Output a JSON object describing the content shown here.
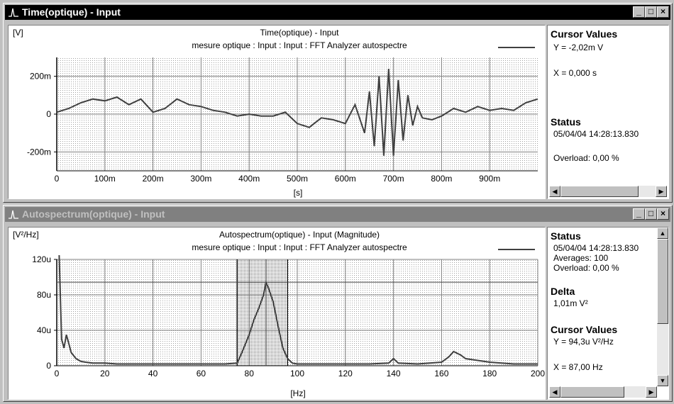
{
  "windows": [
    {
      "title": "Time(optique) - Input",
      "plot": {
        "unit_label": "[V]",
        "title": "Time(optique) - Input",
        "subtitle": "mesure optique : Input : Input : FFT Analyzer autospectre",
        "xlabel": "[s]"
      },
      "side": {
        "cursor_heading": "Cursor Values",
        "cursor_y": "Y = -2,02m V",
        "cursor_x": "X = 0,000 s",
        "status_heading": "Status",
        "status_datetime": "05/04/04  14:28:13.830",
        "overload": "Overload:  0,00 %"
      }
    },
    {
      "title": "Autospectrum(optique) - Input",
      "plot": {
        "unit_label": "[V²/Hz]",
        "title": "Autospectrum(optique) - Input (Magnitude)",
        "subtitle": "mesure optique : Input : Input : FFT Analyzer autospectre",
        "xlabel": "[Hz]"
      },
      "side": {
        "status_heading": "Status",
        "status_datetime": "05/04/04  14:28:13.830",
        "averages": "Averages: 100",
        "overload": "Overload:  0,00 %",
        "delta_heading": "Delta",
        "delta_value": "1,01m V²",
        "cursor_heading": "Cursor Values",
        "cursor_y": "Y = 94,3u V²/Hz",
        "cursor_x": "X = 87,00 Hz"
      }
    }
  ],
  "icons": {
    "window": "spectrum-icon",
    "minimize": "minimize-icon",
    "maximize": "maximize-icon",
    "close": "close-icon"
  },
  "colors": {
    "trace": "#404040",
    "titlebar_active": "#000000",
    "titlebar_inactive": "#808080"
  },
  "chart_data": [
    {
      "type": "line",
      "title": "Time(optique) - Input",
      "subtitle": "mesure optique : Input : Input : FFT Analyzer autospectre",
      "xlabel": "[s]",
      "ylabel": "[V]",
      "xlim": [
        0,
        1.0
      ],
      "ylim": [
        -0.3,
        0.3
      ],
      "x_tick_values": [
        0,
        0.1,
        0.2,
        0.3,
        0.4,
        0.5,
        0.6,
        0.7,
        0.8,
        0.9
      ],
      "x_tick_labels": [
        "0",
        "100m",
        "200m",
        "300m",
        "400m",
        "500m",
        "600m",
        "700m",
        "800m",
        "900m"
      ],
      "y_tick_values": [
        0.2,
        0,
        -0.2
      ],
      "y_tick_labels": [
        "200m",
        "0",
        "-200m"
      ],
      "grid": true,
      "series": [
        {
          "x": [
            0,
            0.025,
            0.05,
            0.075,
            0.1,
            0.125,
            0.15,
            0.175,
            0.2,
            0.225,
            0.25,
            0.275,
            0.3,
            0.325,
            0.35,
            0.375,
            0.4,
            0.425,
            0.45,
            0.475,
            0.5,
            0.525,
            0.55,
            0.575,
            0.6,
            0.62,
            0.64,
            0.65,
            0.66,
            0.67,
            0.68,
            0.69,
            0.7,
            0.71,
            0.72,
            0.73,
            0.74,
            0.75,
            0.76,
            0.78,
            0.8,
            0.825,
            0.85,
            0.875,
            0.9,
            0.925,
            0.95,
            0.975,
            1.0
          ],
          "y": [
            0.01,
            0.03,
            0.06,
            0.08,
            0.07,
            0.09,
            0.05,
            0.08,
            0.01,
            0.03,
            0.08,
            0.05,
            0.04,
            0.02,
            0.01,
            -0.01,
            0.0,
            -0.01,
            -0.01,
            0.01,
            -0.05,
            -0.07,
            -0.02,
            -0.03,
            -0.05,
            0.05,
            -0.1,
            0.12,
            -0.17,
            0.2,
            -0.22,
            0.24,
            -0.22,
            0.18,
            -0.14,
            0.1,
            -0.06,
            0.04,
            -0.02,
            -0.03,
            -0.01,
            0.03,
            0.01,
            0.04,
            0.02,
            0.03,
            0.02,
            0.06,
            0.08
          ]
        }
      ]
    },
    {
      "type": "line",
      "title": "Autospectrum(optique) - Input (Magnitude)",
      "subtitle": "mesure optique : Input : Input : FFT Analyzer autospectre",
      "xlabel": "[Hz]",
      "ylabel": "[V²/Hz]",
      "xlim": [
        0,
        200
      ],
      "ylim": [
        0,
        120
      ],
      "x_tick_values": [
        0,
        20,
        40,
        60,
        80,
        100,
        120,
        140,
        160,
        180,
        200
      ],
      "x_tick_labels": [
        "0",
        "20",
        "40",
        "60",
        "80",
        "100",
        "120",
        "140",
        "160",
        "180",
        "200"
      ],
      "y_tick_values": [
        120,
        80,
        40,
        0
      ],
      "y_tick_labels": [
        "120u",
        "80u",
        "40u",
        "0"
      ],
      "grid": true,
      "delta_band": [
        75,
        96
      ],
      "cursor_x": 87,
      "cursor_y": 94.3,
      "series": [
        {
          "x": [
            1,
            2,
            3,
            4,
            5,
            6,
            8,
            10,
            12,
            15,
            20,
            25,
            30,
            40,
            50,
            60,
            70,
            75,
            77,
            80,
            82,
            84,
            86,
            87,
            88,
            90,
            92,
            94,
            96,
            98,
            100,
            110,
            120,
            130,
            138,
            140,
            142,
            150,
            160,
            163,
            165,
            168,
            170,
            180,
            190,
            200
          ],
          "y": [
            125,
            30,
            20,
            35,
            25,
            15,
            8,
            5,
            4,
            3,
            3,
            2,
            2,
            2,
            2,
            2,
            2,
            3,
            15,
            35,
            52,
            65,
            80,
            94,
            88,
            72,
            45,
            20,
            8,
            3,
            2,
            2,
            2,
            2,
            3,
            8,
            3,
            2,
            4,
            10,
            16,
            12,
            8,
            4,
            2,
            2
          ]
        }
      ]
    }
  ]
}
